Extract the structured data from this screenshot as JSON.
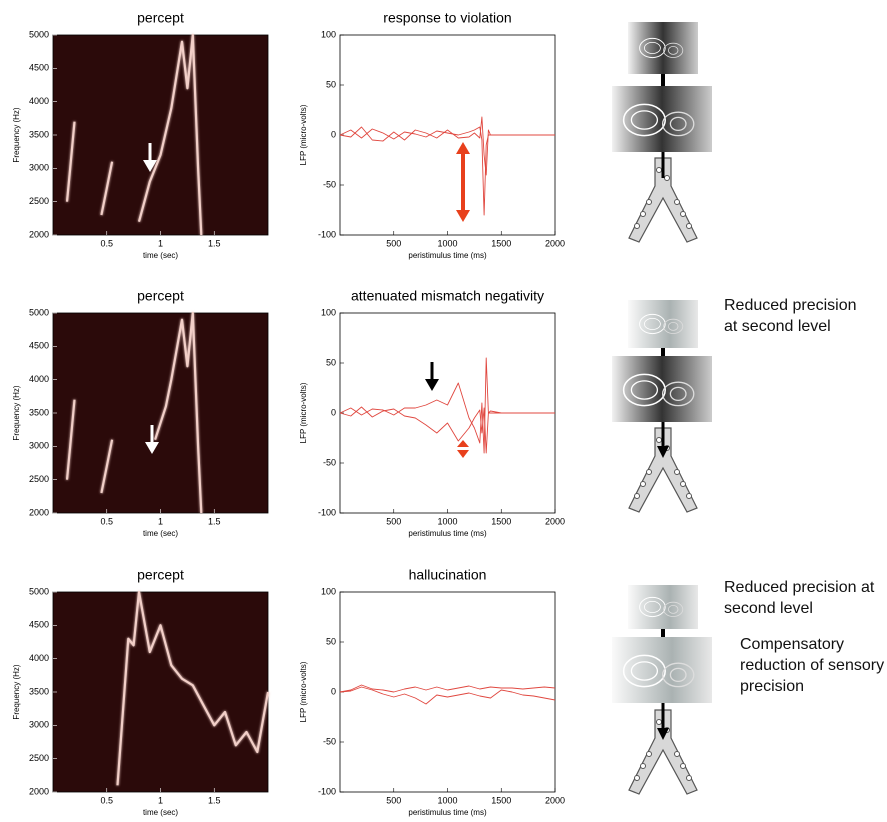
{
  "chart_data": [
    {
      "type": "line",
      "title": "percept",
      "x_label": "time (sec)",
      "y_label": "Frequency (Hz)",
      "background": "#2b0a0a",
      "xlim": [
        0,
        2
      ],
      "xticks": [
        0.5,
        1,
        1.5
      ],
      "ylim": [
        2000,
        5000
      ],
      "yticks": [
        2000,
        2500,
        3000,
        3500,
        4000,
        4500,
        5000
      ],
      "x": [
        0.13,
        0.16,
        0.2,
        0.3,
        0.45,
        0.5,
        0.55,
        0.65,
        0.8,
        0.9,
        1.0,
        1.1,
        1.2,
        1.25,
        1.3,
        1.35,
        1.38
      ],
      "series": [
        {
          "color": "#f2cfc8",
          "values": [
            2500,
            3000,
            3700,
            null,
            2300,
            2700,
            3100,
            null,
            2200,
            2800,
            3200,
            3900,
            4900,
            4200,
            5000,
            3000,
            2000
          ]
        }
      ]
    },
    {
      "type": "line",
      "title": "response to violation",
      "x_label": "peristimulus time (ms)",
      "y_label": "LFP (micro-volts)",
      "xlim": [
        0,
        2000
      ],
      "xticks": [
        500,
        1000,
        1500,
        2000
      ],
      "ylim": [
        -100,
        100
      ],
      "yticks": [
        -100,
        -50,
        0,
        50,
        100
      ],
      "x": [
        0,
        100,
        200,
        300,
        400,
        500,
        600,
        700,
        800,
        900,
        1000,
        1100,
        1200,
        1250,
        1300,
        1320,
        1340,
        1360,
        1380,
        1400,
        1500,
        2000
      ],
      "series": [
        {
          "color": "#e0473f",
          "values": [
            0,
            5,
            -3,
            6,
            2,
            -4,
            3,
            1,
            -2,
            4,
            2,
            0,
            3,
            5,
            8,
            -5,
            -80,
            -10,
            0,
            0,
            0,
            0
          ]
        },
        {
          "color": "#e0473f",
          "values": [
            0,
            -2,
            8,
            -5,
            -6,
            3,
            -5,
            5,
            2,
            -3,
            5,
            -3,
            -2,
            2,
            -3,
            18,
            -20,
            -40,
            5,
            0,
            0,
            0
          ]
        }
      ]
    },
    {
      "type": "line",
      "title": "percept",
      "x_label": "time (sec)",
      "y_label": "Frequency (Hz)",
      "background": "#2b0a0a",
      "xlim": [
        0,
        2
      ],
      "xticks": [
        0.5,
        1,
        1.5
      ],
      "ylim": [
        2000,
        5000
      ],
      "yticks": [
        2000,
        2500,
        3000,
        3500,
        4000,
        4500,
        5000
      ],
      "x": [
        0.13,
        0.16,
        0.2,
        0.3,
        0.45,
        0.5,
        0.55,
        0.65,
        0.95,
        1.05,
        1.1,
        1.2,
        1.25,
        1.3,
        1.35,
        1.38
      ],
      "series": [
        {
          "color": "#f2cfc8",
          "values": [
            2500,
            3000,
            3700,
            null,
            2300,
            2700,
            3100,
            null,
            3100,
            3600,
            4000,
            4900,
            4200,
            5000,
            3000,
            2000
          ]
        }
      ]
    },
    {
      "type": "line",
      "title": "attenuated mismatch negativity",
      "x_label": "peristimulus time (ms)",
      "y_label": "LFP (micro-volts)",
      "xlim": [
        0,
        2000
      ],
      "xticks": [
        500,
        1000,
        1500,
        2000
      ],
      "ylim": [
        -100,
        100
      ],
      "yticks": [
        -100,
        -50,
        0,
        50,
        100
      ],
      "x": [
        0,
        100,
        200,
        300,
        400,
        500,
        600,
        700,
        800,
        900,
        1000,
        1100,
        1200,
        1250,
        1300,
        1320,
        1340,
        1360,
        1380,
        1400,
        1500,
        2000
      ],
      "series": [
        {
          "color": "#e0473f",
          "values": [
            0,
            5,
            -2,
            4,
            3,
            -2,
            5,
            5,
            8,
            13,
            8,
            30,
            -5,
            -15,
            -30,
            10,
            -40,
            55,
            0,
            2,
            0,
            0
          ]
        },
        {
          "color": "#e0473f",
          "values": [
            0,
            -3,
            6,
            -4,
            2,
            4,
            -3,
            -5,
            -12,
            -20,
            -10,
            -28,
            -15,
            -5,
            3,
            -20,
            5,
            -40,
            0,
            0,
            0,
            0
          ]
        }
      ]
    },
    {
      "type": "line",
      "title": "percept",
      "x_label": "time (sec)",
      "y_label": "Frequency (Hz)",
      "background": "#2b0a0a",
      "xlim": [
        0,
        2
      ],
      "xticks": [
        0.5,
        1,
        1.5
      ],
      "ylim": [
        2000,
        5000
      ],
      "yticks": [
        2000,
        2500,
        3000,
        3500,
        4000,
        4500,
        5000
      ],
      "x": [
        0.6,
        0.7,
        0.75,
        0.8,
        0.9,
        1.0,
        1.1,
        1.2,
        1.3,
        1.4,
        1.5,
        1.6,
        1.7,
        1.8,
        1.9,
        2.0
      ],
      "series": [
        {
          "color": "#f2cfc8",
          "values": [
            2100,
            4300,
            4200,
            5000,
            4100,
            4500,
            3900,
            3700,
            3600,
            3300,
            3000,
            3200,
            2700,
            2900,
            2600,
            3500
          ]
        }
      ]
    },
    {
      "type": "line",
      "title": "hallucination",
      "x_label": "peristimulus time (ms)",
      "y_label": "LFP (micro-volts)",
      "xlim": [
        0,
        2000
      ],
      "xticks": [
        500,
        1000,
        1500,
        2000
      ],
      "ylim": [
        -100,
        100
      ],
      "yticks": [
        -100,
        -50,
        0,
        50,
        100
      ],
      "x": [
        0,
        100,
        200,
        300,
        400,
        500,
        600,
        700,
        800,
        900,
        1000,
        1100,
        1200,
        1300,
        1400,
        1500,
        1600,
        1700,
        1800,
        1900,
        2000
      ],
      "series": [
        {
          "color": "#e0473f",
          "values": [
            0,
            2,
            7,
            3,
            2,
            0,
            3,
            5,
            2,
            5,
            2,
            4,
            6,
            3,
            5,
            4,
            4,
            3,
            4,
            5,
            4
          ]
        },
        {
          "color": "#e0473f",
          "values": [
            0,
            1,
            5,
            2,
            -2,
            -5,
            -2,
            -6,
            -12,
            -3,
            -5,
            -3,
            -1,
            -4,
            -6,
            2,
            0,
            -3,
            -4,
            -6,
            -8
          ]
        }
      ]
    }
  ],
  "annotations": [
    "Reduced precision at second level",
    "Reduced precision at second level",
    "Compensatory reduction of sensory precision"
  ]
}
